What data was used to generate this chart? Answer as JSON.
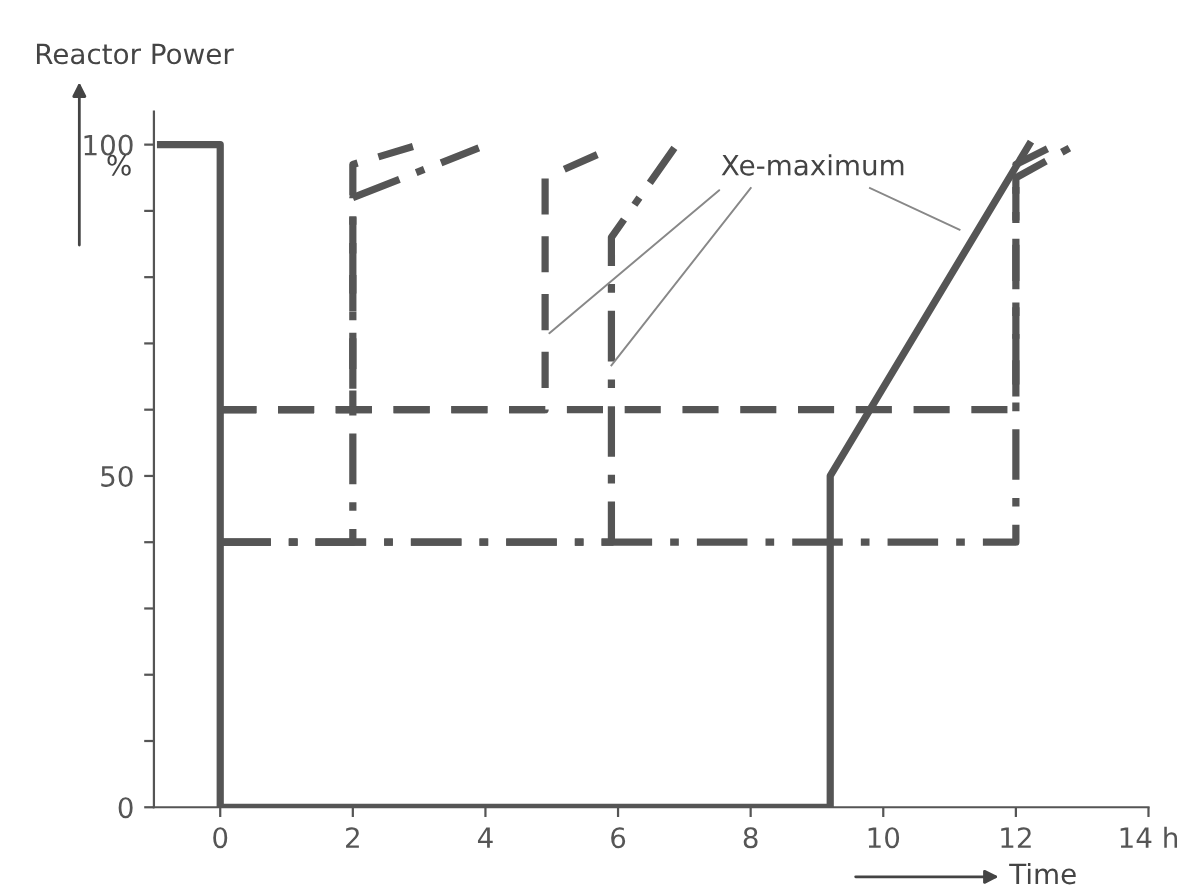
{
  "chart_data": {
    "type": "line",
    "ylabel": "Reactor Power",
    "xlabel": "Time",
    "annotations": [
      "%",
      {
        "text": "Xe-maximum",
        "x": 4.9,
        "y": 71
      }
    ],
    "xlim": [
      -1,
      14
    ],
    "ylim": [
      0,
      105
    ],
    "xticks": [
      0,
      2,
      4,
      6,
      8,
      10,
      12,
      {
        "value": 14,
        "label": "14 h"
      }
    ],
    "yticks": [
      0,
      {
        "value": 10,
        "label": null
      },
      {
        "value": 20,
        "label": null
      },
      {
        "value": 30,
        "label": null
      },
      {
        "value": 40,
        "label": null
      },
      50,
      {
        "value": 60,
        "label": null
      },
      {
        "value": 70,
        "label": null
      },
      {
        "value": 80,
        "label": null
      },
      {
        "value": 90,
        "label": null
      },
      100
    ],
    "grid": false,
    "legend": false,
    "marker": "none",
    "series": [
      {
        "color": "#555555",
        "line_style": "solid",
        "x": [
          -0.9,
          0,
          0,
          9.2,
          9.2,
          12.2
        ],
        "values": [
          100,
          100,
          0,
          0,
          50,
          100
        ]
      },
      {
        "color": "#555555",
        "line_style": "dashed",
        "x": [
          0,
          2,
          2,
          3
        ],
        "values": [
          60,
          60,
          97,
          100
        ]
      },
      {
        "color": "#555555",
        "line_style": "dashed",
        "x": [
          0,
          4.9,
          4.9,
          5.8
        ],
        "values": [
          60,
          60,
          95,
          99
        ]
      },
      {
        "color": "#555555",
        "line_style": "dashed",
        "x": [
          0,
          12,
          12,
          12.6
        ],
        "values": [
          60,
          60,
          97,
          100
        ]
      },
      {
        "color": "#555555",
        "line_style": "dashdot",
        "x": [
          0,
          2,
          2,
          3.9
        ],
        "values": [
          40,
          40,
          92,
          99.5
        ]
      },
      {
        "color": "#555555",
        "line_style": "dashdot",
        "x": [
          0,
          5.9,
          5.9,
          6.85
        ],
        "values": [
          40,
          40,
          86,
          99.5
        ]
      },
      {
        "color": "#555555",
        "line_style": "dashdot",
        "x": [
          0,
          12,
          12,
          12.9
        ],
        "values": [
          40,
          40,
          95,
          100
        ]
      }
    ]
  }
}
